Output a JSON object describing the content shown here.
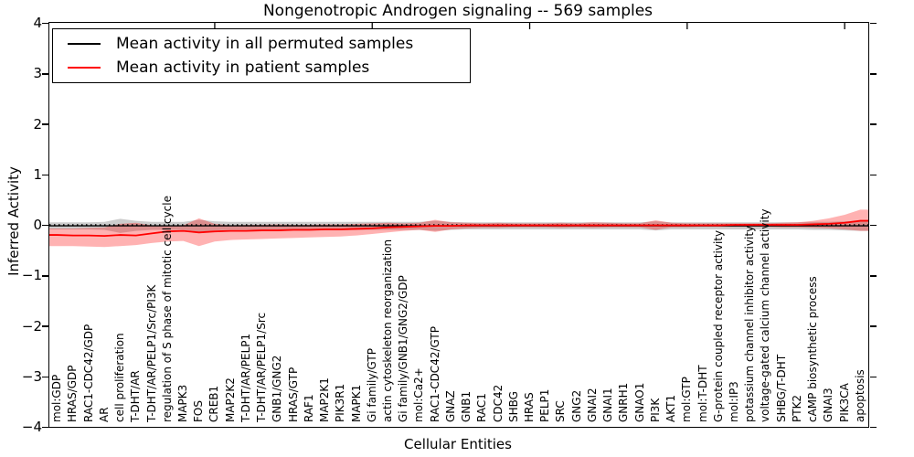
{
  "chart_data": {
    "type": "line",
    "title": "Nongenotropic Androgen signaling -- 569 samples",
    "xlabel": "Cellular Entities",
    "ylabel": "Inferred Activity",
    "ylim": [
      -4,
      4
    ],
    "grid": false,
    "zero_reference_line": {
      "style": "dotted",
      "color": "#000000",
      "y": 0
    },
    "legend_location": "upper left",
    "yticks": [
      {
        "value": 4,
        "label": "4"
      },
      {
        "value": 3,
        "label": "3"
      },
      {
        "value": 2,
        "label": "2"
      },
      {
        "value": 1,
        "label": "1"
      },
      {
        "value": 0,
        "label": "0"
      },
      {
        "value": -1,
        "label": "−1"
      },
      {
        "value": -2,
        "label": "−2"
      },
      {
        "value": -3,
        "label": "−3"
      },
      {
        "value": -4,
        "label": "−4"
      }
    ],
    "top_tick_category_indices": [
      10,
      20,
      30,
      40,
      50
    ],
    "categories": [
      "mol:GDP",
      "HRAS/GDP",
      "RAC1-CDC42/GDP",
      "AR",
      "cell proliferation",
      "T-DHT/AR",
      "T-DHT/AR/PELP1/Src/PI3K",
      "regulation of S phase of mitotic cell cycle",
      "MAPK3",
      "FOS",
      "CREB1",
      "MAP2K2",
      "T-DHT/AR/PELP1",
      "T-DHT/AR/PELP1/Src",
      "GNB1/GNG2",
      "HRAS/GTP",
      "RAF1",
      "MAP2K1",
      "PIK3R1",
      "MAPK1",
      "Gi family/GTP",
      "actin cytoskeleton reorganization",
      "Gi family/GNB1/GNG2/GDP",
      "mol:Ca2+",
      "RAC1-CDC42/GTP",
      "GNAZ",
      "GNB1",
      "RAC1",
      "CDC42",
      "SHBG",
      "HRAS",
      "PELP1",
      "SRC",
      "GNG2",
      "GNAI2",
      "GNAI1",
      "GNRH1",
      "GNAO1",
      "PI3K",
      "AKT1",
      "mol:GTP",
      "mol:T-DHT",
      "G-protein coupled receptor activity",
      "mol:IP3",
      "potassium channel inhibitor activity",
      "voltage-gated calcium channel activity",
      "SHBG/T-DHT",
      "PTK2",
      "cAMP biosynthetic process",
      "GNAI3",
      "PIK3CA",
      "apoptosis"
    ],
    "series": [
      {
        "name": "Mean activity in all permuted samples",
        "color": "#000000",
        "band_color": "#000000",
        "band_opacity": 0.2,
        "values": [
          -0.02,
          -0.02,
          -0.02,
          -0.02,
          -0.02,
          -0.02,
          -0.02,
          -0.02,
          -0.02,
          -0.02,
          -0.02,
          -0.02,
          -0.02,
          -0.02,
          -0.02,
          -0.02,
          -0.02,
          -0.02,
          -0.02,
          -0.02,
          -0.02,
          -0.02,
          -0.02,
          -0.02,
          -0.02,
          -0.02,
          -0.02,
          -0.02,
          -0.02,
          -0.02,
          -0.02,
          -0.02,
          -0.02,
          -0.02,
          -0.02,
          -0.02,
          -0.02,
          -0.02,
          -0.02,
          -0.02,
          -0.02,
          -0.02,
          -0.02,
          -0.02,
          -0.02,
          -0.02,
          -0.02,
          -0.02,
          -0.02,
          -0.02,
          -0.02,
          -0.02
        ],
        "band_upper": [
          0.05,
          0.05,
          0.05,
          0.06,
          0.12,
          0.08,
          0.06,
          0.06,
          0.06,
          0.1,
          0.07,
          0.06,
          0.06,
          0.06,
          0.06,
          0.06,
          0.06,
          0.06,
          0.06,
          0.06,
          0.06,
          0.06,
          0.06,
          0.06,
          0.08,
          0.06,
          0.05,
          0.05,
          0.05,
          0.05,
          0.05,
          0.05,
          0.05,
          0.05,
          0.05,
          0.05,
          0.05,
          0.05,
          0.07,
          0.05,
          0.05,
          0.05,
          0.05,
          0.05,
          0.05,
          0.05,
          0.05,
          0.05,
          0.06,
          0.06,
          0.07,
          0.08
        ],
        "band_lower": [
          -0.09,
          -0.09,
          -0.09,
          -0.1,
          -0.16,
          -0.12,
          -0.1,
          -0.1,
          -0.1,
          -0.14,
          -0.11,
          -0.1,
          -0.1,
          -0.1,
          -0.1,
          -0.1,
          -0.1,
          -0.1,
          -0.1,
          -0.1,
          -0.1,
          -0.1,
          -0.1,
          -0.1,
          -0.12,
          -0.1,
          -0.09,
          -0.09,
          -0.09,
          -0.09,
          -0.09,
          -0.09,
          -0.09,
          -0.09,
          -0.09,
          -0.09,
          -0.09,
          -0.09,
          -0.11,
          -0.09,
          -0.09,
          -0.09,
          -0.09,
          -0.09,
          -0.09,
          -0.09,
          -0.09,
          -0.09,
          -0.1,
          -0.1,
          -0.11,
          -0.12
        ]
      },
      {
        "name": "Mean activity in patient samples",
        "color": "#ff0000",
        "band_color": "#ff0000",
        "band_opacity": 0.3,
        "values": [
          -0.2,
          -0.21,
          -0.21,
          -0.22,
          -0.2,
          -0.21,
          -0.17,
          -0.13,
          -0.12,
          -0.15,
          -0.13,
          -0.12,
          -0.12,
          -0.11,
          -0.11,
          -0.1,
          -0.1,
          -0.09,
          -0.09,
          -0.08,
          -0.07,
          -0.05,
          -0.04,
          -0.03,
          -0.02,
          -0.02,
          -0.01,
          -0.01,
          -0.01,
          -0.01,
          -0.01,
          -0.01,
          -0.01,
          -0.01,
          -0.01,
          -0.01,
          -0.01,
          -0.01,
          -0.01,
          -0.01,
          -0.01,
          -0.01,
          -0.01,
          0.0,
          0.0,
          0.0,
          0.0,
          0.0,
          0.01,
          0.02,
          0.04,
          0.08
        ],
        "band_upper": [
          -0.07,
          -0.07,
          -0.06,
          -0.05,
          0.02,
          0.04,
          -0.01,
          -0.02,
          -0.01,
          0.13,
          0.02,
          -0.01,
          0.0,
          0.0,
          0.01,
          0.0,
          0.0,
          0.01,
          0.01,
          0.02,
          0.03,
          0.04,
          0.03,
          0.04,
          0.1,
          0.05,
          0.04,
          0.03,
          0.04,
          0.03,
          0.03,
          0.03,
          0.04,
          0.03,
          0.05,
          0.04,
          0.03,
          0.03,
          0.09,
          0.04,
          0.03,
          0.03,
          0.03,
          0.03,
          0.03,
          0.03,
          0.04,
          0.05,
          0.08,
          0.13,
          0.2,
          0.3
        ],
        "band_lower": [
          -0.42,
          -0.42,
          -0.43,
          -0.44,
          -0.42,
          -0.4,
          -0.36,
          -0.33,
          -0.32,
          -0.42,
          -0.33,
          -0.3,
          -0.29,
          -0.28,
          -0.27,
          -0.26,
          -0.25,
          -0.24,
          -0.23,
          -0.21,
          -0.18,
          -0.15,
          -0.12,
          -0.1,
          -0.14,
          -0.09,
          -0.07,
          -0.06,
          -0.06,
          -0.05,
          -0.05,
          -0.05,
          -0.06,
          -0.05,
          -0.06,
          -0.05,
          -0.05,
          -0.05,
          -0.1,
          -0.05,
          -0.05,
          -0.04,
          -0.04,
          -0.04,
          -0.04,
          -0.04,
          -0.05,
          -0.05,
          -0.06,
          -0.07,
          -0.09,
          -0.12
        ]
      }
    ]
  }
}
